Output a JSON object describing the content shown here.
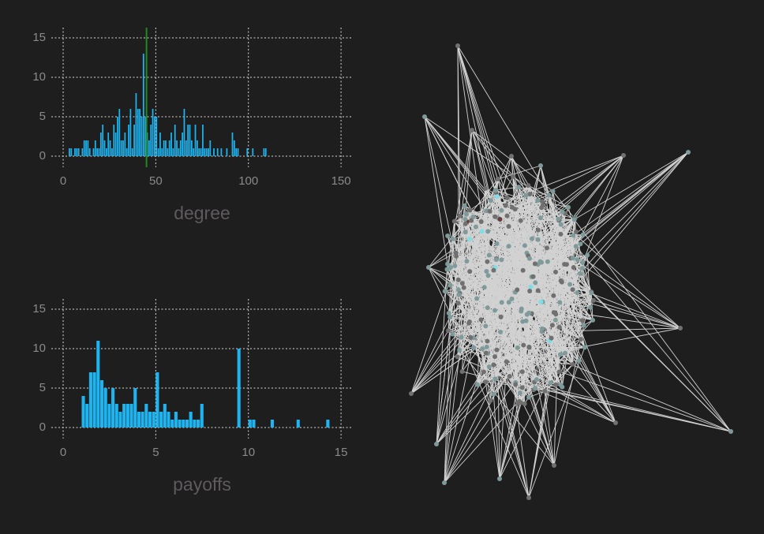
{
  "chart_data": [
    {
      "type": "histogram",
      "xlabel": "degree",
      "color": "#1eb4f0",
      "grid": true,
      "bins": [
        2,
        3,
        4,
        5,
        6,
        7,
        8,
        9,
        10,
        11,
        12,
        13,
        14,
        15,
        16,
        17,
        18,
        19,
        20,
        21,
        22,
        23,
        24,
        25,
        26,
        27,
        28,
        29,
        30,
        31,
        32,
        33,
        34,
        35,
        36,
        37,
        38,
        39,
        40,
        41,
        42,
        43,
        44,
        45,
        46,
        47,
        48,
        49,
        50,
        51,
        52,
        53,
        54,
        55,
        56,
        57,
        58,
        59,
        60,
        61,
        62,
        63,
        64,
        65,
        66,
        67,
        68,
        69,
        70,
        71,
        72,
        73,
        74,
        75,
        76,
        77,
        78,
        79,
        80,
        81,
        82,
        83,
        84,
        85,
        86,
        87,
        88,
        89,
        90,
        91,
        92,
        93,
        94,
        95,
        96,
        97,
        98,
        99,
        100,
        101,
        102,
        103,
        104,
        105,
        106,
        107,
        108,
        109,
        110
      ],
      "counts": [
        0,
        1,
        1,
        0,
        1,
        1,
        1,
        0,
        1,
        2,
        2,
        2,
        1,
        0,
        1,
        2,
        1,
        1,
        3,
        4,
        2,
        1,
        3,
        2,
        1,
        4,
        3,
        5,
        6,
        2,
        2,
        3,
        1,
        4,
        6,
        1,
        4,
        8,
        6,
        6,
        5,
        13,
        5,
        3,
        2,
        4,
        6,
        5,
        5,
        1,
        3,
        1,
        2,
        2,
        1,
        2,
        3,
        1,
        4,
        2,
        1,
        2,
        3,
        6,
        2,
        4,
        4,
        2,
        1,
        4,
        2,
        1,
        1,
        4,
        1,
        1,
        1,
        2,
        0,
        1,
        0,
        1,
        0,
        1,
        0,
        0,
        1,
        0,
        0,
        3,
        2,
        1,
        1,
        0,
        0,
        0,
        0,
        1,
        0,
        0,
        1,
        0,
        0,
        0,
        0,
        0,
        1,
        1
      ],
      "vline": 45,
      "vline_color": "#1f8a1f",
      "xlim": [
        -6.4,
        155.5
      ],
      "xticks": [
        0,
        50,
        100,
        150
      ],
      "ylim": [
        -1.4,
        16.3
      ],
      "yticks": [
        0,
        5,
        10,
        15
      ]
    },
    {
      "type": "histogram",
      "xlabel": "payoffs",
      "color": "#1eb4f0",
      "grid": true,
      "bins": [
        1,
        1.2,
        1.4,
        1.6,
        1.8,
        2,
        2.2,
        2.4,
        2.6,
        2.8,
        3,
        3.2,
        3.4,
        3.6,
        3.8,
        4,
        4.2,
        4.4,
        4.6,
        4.8,
        5,
        5.2,
        5.4,
        5.6,
        5.8,
        6,
        6.2,
        6.4,
        6.6,
        6.8,
        7,
        7.2,
        7.4,
        7.6,
        7.8,
        8,
        8.2,
        8.4,
        8.6,
        8.8,
        9,
        9.2,
        9.4,
        9.6,
        9.8,
        10,
        10.2,
        10.4,
        10.6,
        10.8,
        11,
        11.2,
        11.4,
        11.6,
        11.8,
        12,
        12.2,
        12.4,
        12.6,
        12.8,
        13,
        13.2,
        13.4,
        13.6,
        13.8,
        14,
        14.2,
        14.4
      ],
      "counts": [
        4,
        3,
        7,
        7,
        11,
        6,
        5,
        3,
        5,
        3,
        2,
        3,
        3,
        3,
        5,
        2,
        2,
        3,
        2,
        2,
        7,
        2,
        3,
        2,
        1,
        2,
        1,
        1,
        1,
        2,
        1,
        1,
        3,
        0,
        0,
        0,
        0,
        0,
        0,
        0,
        0,
        0,
        10,
        0,
        0,
        1,
        1,
        0,
        0,
        0,
        0,
        1,
        0,
        0,
        0,
        0,
        0,
        0,
        1,
        0,
        0,
        0,
        0,
        0,
        0,
        0,
        1
      ],
      "xlim": [
        -0.64,
        15.55
      ],
      "xticks": [
        0,
        5,
        10,
        15
      ],
      "ylim": [
        -1.4,
        16.3
      ],
      "yticks": [
        0,
        5,
        10,
        15
      ]
    }
  ]
}
